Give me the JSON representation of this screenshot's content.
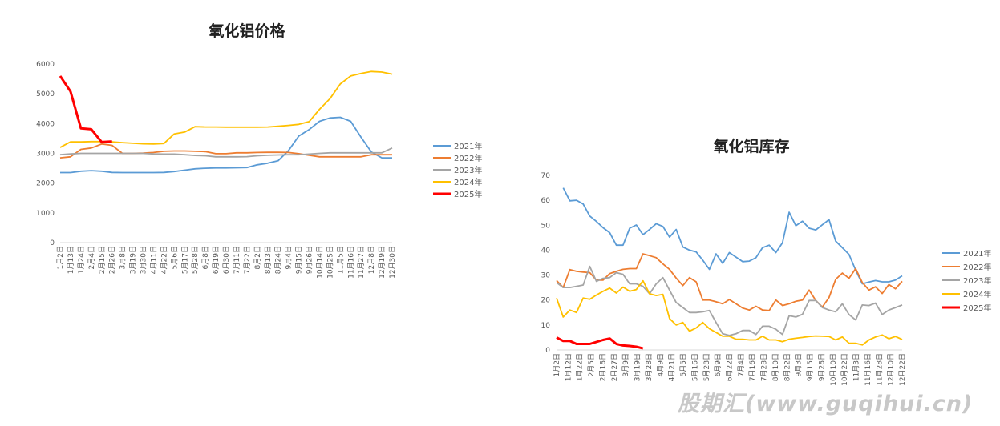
{
  "chart_data": [
    {
      "type": "line",
      "title": "氧化铝价格",
      "ylim": [
        0,
        6000
      ],
      "yticks": [
        0,
        1000,
        2000,
        3000,
        4000,
        5000,
        6000
      ],
      "grid": false,
      "legend": "right",
      "categories": [
        "1月2日",
        "1月13日",
        "1月24日",
        "2月4日",
        "2月15日",
        "2月26日",
        "3月8日",
        "3月19日",
        "3月30日",
        "4月11日",
        "4月22日",
        "5月6日",
        "5月17日",
        "5月28日",
        "6月8日",
        "6月19日",
        "6月30日",
        "7月11日",
        "7月22日",
        "8月2日",
        "8月13日",
        "8月24日",
        "9月4日",
        "9月15日",
        "9月26日",
        "10月14日",
        "10月25日",
        "11月5日",
        "11月16日",
        "11月27日",
        "12月8日",
        "12月19日",
        "12月30日"
      ],
      "series": [
        {
          "name": "2021年",
          "color": "#5b9bd5",
          "values": [
            2355,
            2355,
            2400,
            2420,
            2400,
            2360,
            2355,
            2355,
            2355,
            2355,
            2360,
            2390,
            2435,
            2480,
            2500,
            2510,
            2510,
            2515,
            2525,
            2615,
            2670,
            2750,
            3090,
            3580,
            3800,
            4075,
            4190,
            4210,
            4075,
            3540,
            3045,
            2850,
            2850
          ]
        },
        {
          "name": "2022年",
          "color": "#ed7d31",
          "values": [
            2850,
            2885,
            3135,
            3180,
            3315,
            3270,
            3000,
            3000,
            3010,
            3030,
            3070,
            3080,
            3080,
            3070,
            3060,
            2990,
            2990,
            3020,
            3020,
            3030,
            3035,
            3035,
            3030,
            2990,
            2935,
            2885,
            2885,
            2885,
            2885,
            2885,
            2955,
            2955,
            2955
          ]
        },
        {
          "name": "2023年",
          "color": "#a5a5a5",
          "values": [
            2955,
            2980,
            3000,
            3000,
            3000,
            3000,
            3000,
            3000,
            3000,
            2980,
            2975,
            2975,
            2955,
            2930,
            2920,
            2885,
            2885,
            2885,
            2890,
            2920,
            2935,
            2945,
            2955,
            2955,
            2975,
            3000,
            3020,
            3020,
            3020,
            3020,
            3020,
            3020,
            3180
          ]
        },
        {
          "name": "2024年",
          "color": "#ffc000",
          "values": [
            3200,
            3385,
            3385,
            3395,
            3395,
            3385,
            3360,
            3340,
            3320,
            3315,
            3330,
            3655,
            3715,
            3895,
            3885,
            3885,
            3880,
            3880,
            3880,
            3880,
            3885,
            3910,
            3940,
            3975,
            4065,
            4480,
            4835,
            5330,
            5600,
            5685,
            5750,
            5730,
            5660
          ]
        },
        {
          "name": "2025年",
          "color": "#ff0000",
          "values": [
            5600,
            5080,
            3840,
            3810,
            3380,
            3400,
            null,
            null,
            null,
            null,
            null,
            null,
            null,
            null,
            null,
            null,
            null,
            null,
            null,
            null,
            null,
            null,
            null,
            null,
            null,
            null,
            null,
            null,
            null,
            null,
            null,
            null,
            null
          ]
        }
      ]
    },
    {
      "type": "line",
      "title": "氧化铝库存",
      "ylim": [
        0,
        70
      ],
      "yticks": [
        0,
        10,
        20,
        30,
        40,
        50,
        60,
        70
      ],
      "grid": false,
      "legend": "right",
      "tick_labels": [
        "1月2日",
        "1月12日",
        "1月22日",
        "2月5日",
        "2月18日",
        "2月27日",
        "3月9日",
        "3月19日",
        "3月28日",
        "4月9日",
        "4月21日",
        "5月5日",
        "5月16日",
        "5月28日",
        "6月9日",
        "6月22日",
        "7月4日",
        "7月16日",
        "7月28日",
        "8月10日",
        "8月22日",
        "9月3日",
        "9月15日",
        "9月28日",
        "10月10日",
        "10月22日",
        "11月3日",
        "11月16日",
        "11月28日",
        "12月10日",
        "12月22日"
      ],
      "series": [
        {
          "name": "2021年",
          "color": "#5b9bd5",
          "values": [
            null,
            65,
            59.8,
            60,
            58.5,
            53.7,
            51.5,
            49,
            47,
            42,
            42,
            48.8,
            50.1,
            46.2,
            48.3,
            50.6,
            49.5,
            45.2,
            48.3,
            41.3,
            40,
            39.3,
            36,
            32.3,
            38.5,
            34.7,
            39,
            37.2,
            35.4,
            35.6,
            37,
            41,
            42,
            39,
            43,
            55.2,
            49.8,
            51.6,
            48.8,
            48.1,
            50.2,
            52.2,
            43.6,
            41,
            38.3,
            32,
            26.5,
            27.2,
            27.8,
            27.3,
            27.3,
            28,
            29.7
          ]
        },
        {
          "name": "2022年",
          "color": "#ed7d31",
          "values": [
            27.8,
            25,
            32.2,
            31.5,
            31.2,
            31,
            28,
            28,
            30.6,
            31.5,
            32.3,
            32.6,
            32.6,
            38.5,
            37.8,
            37,
            34.5,
            32.3,
            28.8,
            25.8,
            29,
            27.3,
            20,
            20,
            19.3,
            18.5,
            20.2,
            18.5,
            16.8,
            16,
            17.5,
            16,
            15.8,
            20,
            17.8,
            18.5,
            19.5,
            20,
            24,
            19.8,
            17.2,
            21,
            28.3,
            30.8,
            28.7,
            32.6,
            27,
            24,
            25.3,
            22.6,
            26.2,
            24.5,
            27.5
          ]
        },
        {
          "name": "2023年",
          "color": "#a5a5a5",
          "values": [
            27,
            25,
            25,
            25.5,
            26,
            33.5,
            27.5,
            28.7,
            29,
            31,
            30.3,
            26.5,
            26.5,
            25.5,
            22.5,
            26.5,
            29,
            24,
            19,
            17,
            15,
            15,
            15.3,
            15.8,
            11,
            6.5,
            5.8,
            6.5,
            7.8,
            7.8,
            6.2,
            9.5,
            9.5,
            8.3,
            6.2,
            13.7,
            13.2,
            14.3,
            19.8,
            19.8,
            17,
            16,
            15.3,
            18.5,
            14.2,
            12,
            18,
            17.8,
            18.8,
            14.2,
            16,
            17,
            18
          ]
        },
        {
          "name": "2024年",
          "color": "#ffc000",
          "values": [
            20.8,
            13.2,
            16,
            15,
            20.8,
            20.3,
            22,
            23.5,
            24.8,
            22.8,
            25.2,
            23.5,
            24.2,
            27.7,
            22.5,
            21.8,
            22.3,
            12.6,
            10,
            11,
            7.5,
            8.8,
            11,
            8.5,
            7,
            5.5,
            5.5,
            4.3,
            4.3,
            4,
            4,
            5.5,
            4,
            4,
            3.3,
            4.3,
            4.7,
            5,
            5.4,
            5.6,
            5.5,
            5.4,
            4,
            5.2,
            2.7,
            2.7,
            2,
            4,
            5.2,
            6,
            4.5,
            5.4,
            4.2
          ]
        },
        {
          "name": "2025年",
          "color": "#ff0000",
          "values": [
            5,
            3.6,
            3.6,
            2.4,
            2.4,
            2.4,
            3.2,
            4,
            4.6,
            2.4,
            1.8,
            1.6,
            1.3,
            0.6
          ]
        }
      ]
    }
  ],
  "watermark": "股期汇(www.guqihui.cn)"
}
